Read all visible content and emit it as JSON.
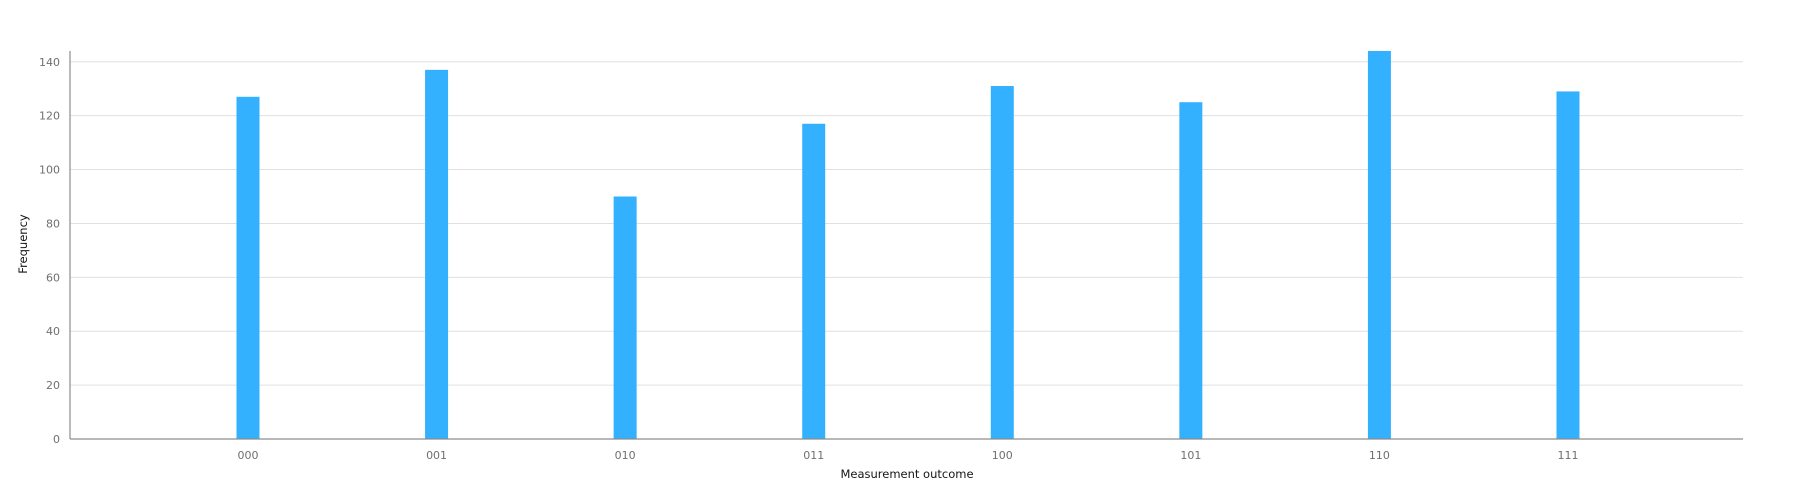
{
  "chart_data": {
    "type": "bar",
    "title": "",
    "xlabel": "Measurement outcome",
    "ylabel": "Frequency",
    "categories": [
      "000",
      "001",
      "010",
      "011",
      "100",
      "101",
      "110",
      "111"
    ],
    "values": [
      127,
      137,
      90,
      117,
      131,
      125,
      144,
      129
    ],
    "ylim": [
      0,
      144
    ],
    "yticks": [
      0,
      20,
      40,
      60,
      80,
      100,
      120,
      140
    ],
    "grid": true,
    "bar_color": "#33b1ff"
  }
}
